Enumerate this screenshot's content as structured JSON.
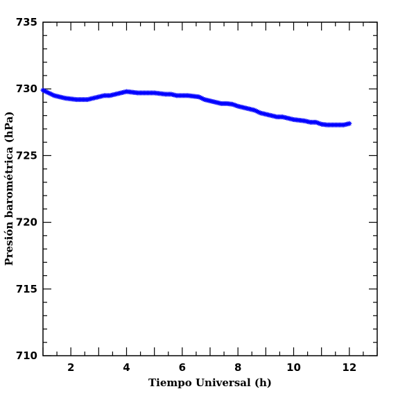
{
  "chart_data": {
    "type": "scatter",
    "title": "",
    "xlabel": "Tiempo Universal (h)",
    "ylabel": "Presión barométrica (hPa)",
    "xlim": [
      1,
      13
    ],
    "ylim": [
      710,
      735
    ],
    "xticks": [
      2,
      4,
      6,
      8,
      10,
      12
    ],
    "yticks": [
      710,
      715,
      720,
      725,
      730,
      735
    ],
    "grid": false,
    "legend": "none",
    "marker": "star",
    "series": [
      {
        "color": "#0000ff",
        "x": [
          1.0,
          1.2,
          1.4,
          1.6,
          1.8,
          2.0,
          2.2,
          2.4,
          2.6,
          2.8,
          3.0,
          3.2,
          3.4,
          3.6,
          3.8,
          4.0,
          4.2,
          4.4,
          4.6,
          4.8,
          5.0,
          5.2,
          5.4,
          5.6,
          5.8,
          6.0,
          6.2,
          6.4,
          6.6,
          6.8,
          7.0,
          7.2,
          7.4,
          7.6,
          7.8,
          8.0,
          8.2,
          8.4,
          8.6,
          8.8,
          9.0,
          9.2,
          9.4,
          9.6,
          9.8,
          10.0,
          10.2,
          10.4,
          10.6,
          10.8,
          11.0,
          11.2,
          11.4,
          11.6,
          11.8,
          12.0
        ],
        "y": [
          729.9,
          729.7,
          729.5,
          729.4,
          729.3,
          729.25,
          729.2,
          729.2,
          729.2,
          729.3,
          729.4,
          729.5,
          729.5,
          729.6,
          729.7,
          729.8,
          729.75,
          729.7,
          729.7,
          729.7,
          729.7,
          729.65,
          729.6,
          729.6,
          729.5,
          729.5,
          729.5,
          729.45,
          729.4,
          729.2,
          729.1,
          729.0,
          728.9,
          728.9,
          728.85,
          728.7,
          728.6,
          728.5,
          728.4,
          728.2,
          728.1,
          728.0,
          727.9,
          727.9,
          727.8,
          727.7,
          727.65,
          727.6,
          727.5,
          727.5,
          727.35,
          727.3,
          727.3,
          727.3,
          727.3,
          727.4
        ]
      }
    ]
  }
}
